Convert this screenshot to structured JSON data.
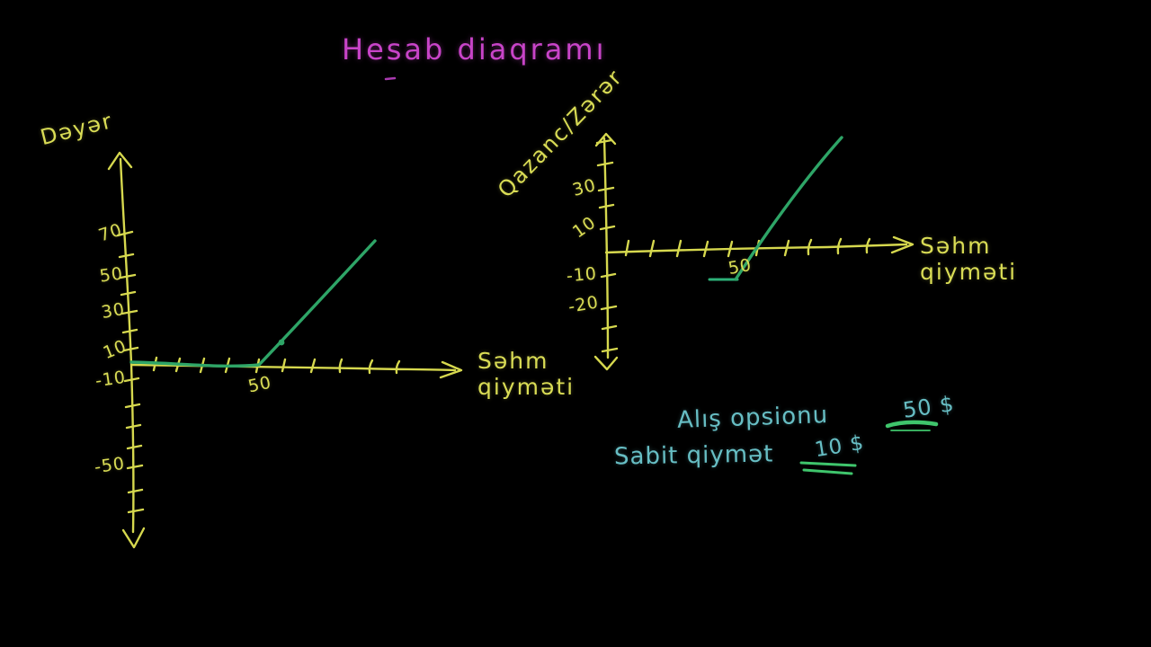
{
  "title": "Hesab diaqramı",
  "colors": {
    "background": "#000000",
    "title_magenta": "#c844c8",
    "axis_yellow": "#d6d84e",
    "line_green": "#2ea567",
    "underline_green": "#3fc56c",
    "note_teal": "#67bec4"
  },
  "charts": [
    {
      "y_axis_label": "Dəyər",
      "x_axis_label": "Səhm\nqiyməti",
      "y_tick_labels": [
        {
          "text": "70",
          "x": 136,
          "y": 259,
          "rot": -18,
          "align": "right"
        },
        {
          "text": "50",
          "x": 137,
          "y": 306,
          "rot": -8,
          "align": "right"
        },
        {
          "text": "30",
          "x": 139,
          "y": 346,
          "rot": -10,
          "align": "right"
        },
        {
          "text": "10",
          "x": 141,
          "y": 389,
          "rot": -22,
          "align": "right"
        },
        {
          "text": "-10",
          "x": 140,
          "y": 422,
          "rot": -8,
          "align": "right"
        },
        {
          "text": "-50",
          "x": 139,
          "y": 518,
          "rot": -8,
          "align": "right"
        }
      ],
      "x_tick_labels": [
        {
          "text": "50",
          "x": 289,
          "y": 417,
          "rot": -12
        }
      ]
    },
    {
      "y_axis_label": "Qazanc/Zərər",
      "x_axis_label": "Səhm\nqiyməti",
      "y_tick_labels": [
        {
          "text": "30",
          "x": 663,
          "y": 209,
          "rot": -15,
          "align": "right"
        },
        {
          "text": "10",
          "x": 663,
          "y": 253,
          "rot": -35,
          "align": "right"
        },
        {
          "text": "-10",
          "x": 664,
          "y": 306,
          "rot": -5,
          "align": "right"
        },
        {
          "text": "-20",
          "x": 666,
          "y": 339,
          "rot": -10,
          "align": "right"
        }
      ],
      "x_tick_labels": [
        {
          "text": "50",
          "x": 823,
          "y": 286,
          "rot": -10
        }
      ]
    }
  ],
  "annotations": [
    {
      "label": "Alış opsionu",
      "value": "50 $"
    },
    {
      "label": "Sabit qiymət",
      "value": "10 $"
    }
  ],
  "chart_data": [
    {
      "type": "line",
      "title": "Hesab diaqramı",
      "xlabel": "Səhm qiyməti",
      "ylabel": "Dəyər",
      "x_ticks_labeled": [
        50
      ],
      "x_ticks_unlabeled_every": 10,
      "y_ticks_labeled": [
        70,
        50,
        30,
        10,
        -10,
        -50
      ],
      "y_ticks_unlabeled_every": 10,
      "xlim": [
        0,
        130
      ],
      "ylim": [
        -80,
        90
      ],
      "grid": false,
      "legend": "none",
      "series": [
        {
          "name": "call-option-value-line",
          "color": "#2ea567",
          "x": [
            0,
            50,
            95
          ],
          "y": [
            0,
            0,
            45
          ],
          "shape": "flat at 0 until strike 50, then rises linearly"
        }
      ],
      "point_markers": [
        {
          "x": 58,
          "y": 8
        }
      ]
    },
    {
      "type": "line",
      "title": "",
      "xlabel": "Səhm qiyməti",
      "ylabel": "Qazanc/Zərər",
      "x_ticks_labeled": [
        50
      ],
      "x_ticks_unlabeled_every": 10,
      "y_ticks_labeled": [
        30,
        10,
        -10,
        -20
      ],
      "y_ticks_unlabeled_every": 10,
      "xlim": [
        0,
        115
      ],
      "ylim": [
        -45,
        45
      ],
      "grid": false,
      "legend": "none",
      "series": [
        {
          "name": "profit-loss-line",
          "color": "#2ea567",
          "x": [
            40,
            50,
            90
          ],
          "y": [
            -10,
            -10,
            45
          ],
          "shape": "flat at -10 before strike 50, crosses zero near 60, rises linearly"
        }
      ],
      "point_markers": []
    }
  ]
}
